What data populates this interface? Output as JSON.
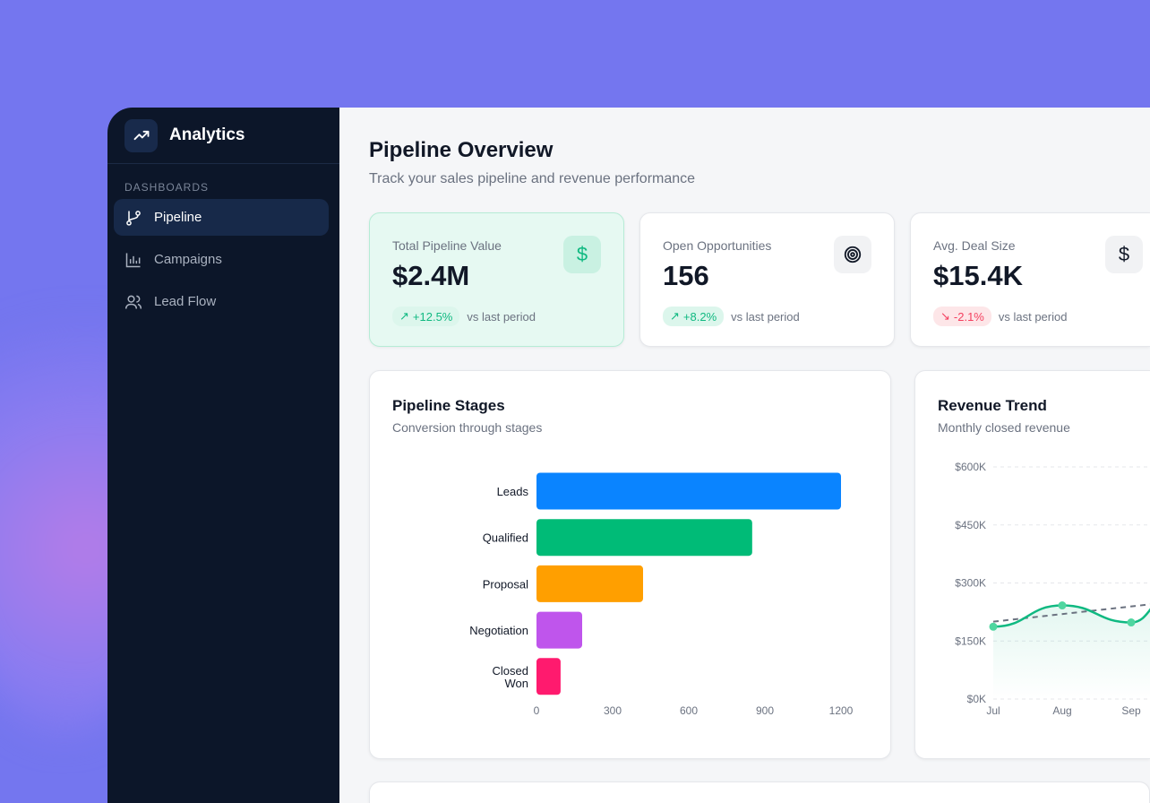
{
  "sidebar": {
    "brand": "Analytics",
    "section": "DASHBOARDS",
    "items": [
      {
        "label": "Pipeline",
        "icon": "git-branch-icon",
        "active": true
      },
      {
        "label": "Campaigns",
        "icon": "bar-chart-icon"
      },
      {
        "label": "Lead Flow",
        "icon": "users-icon"
      }
    ]
  },
  "header": {
    "title": "Pipeline Overview",
    "subtitle": "Track your sales pipeline and revenue performance"
  },
  "kpis": [
    {
      "label": "Total Pipeline Value",
      "value": "$2.4M",
      "change": "+12.5%",
      "trend": "up",
      "compare": "vs last period",
      "icon": "dollar-icon"
    },
    {
      "label": "Open Opportunities",
      "value": "156",
      "change": "+8.2%",
      "trend": "up",
      "compare": "vs last period",
      "icon": "target-icon"
    },
    {
      "label": "Avg. Deal Size",
      "value": "$15.4K",
      "change": "-2.1%",
      "trend": "down",
      "compare": "vs last period",
      "icon": "dollar-icon"
    }
  ],
  "colors": {
    "up": "#10b981",
    "down": "#f43f5e",
    "sidebar": "#0c1629",
    "background": "#7476ef"
  },
  "chart_data": [
    {
      "type": "bar",
      "orientation": "horizontal",
      "title": "Pipeline Stages",
      "subtitle": "Conversion through stages",
      "categories": [
        "Leads",
        "Qualified",
        "Proposal",
        "Negotiation",
        "Closed Won"
      ],
      "values": [
        1200,
        850,
        420,
        180,
        95
      ],
      "colors": [
        "#0a84ff",
        "#00bb77",
        "#ff9f00",
        "#bf55ec",
        "#ff1a6e"
      ],
      "xticks": [
        0,
        300,
        600,
        900,
        1200
      ],
      "xlim": [
        0,
        1200
      ],
      "grid": false
    },
    {
      "type": "line",
      "title": "Revenue Trend",
      "subtitle": "Monthly closed revenue",
      "categories": [
        "Jul",
        "Aug",
        "Sep"
      ],
      "values": [
        187000,
        242000,
        198000
      ],
      "trend_line": [
        200000,
        245000
      ],
      "yticks": [
        "$0K",
        "$150K",
        "$300K",
        "$450K",
        "$600K"
      ],
      "ylim": [
        0,
        600000
      ],
      "grid": true,
      "color": "#10b981"
    }
  ]
}
